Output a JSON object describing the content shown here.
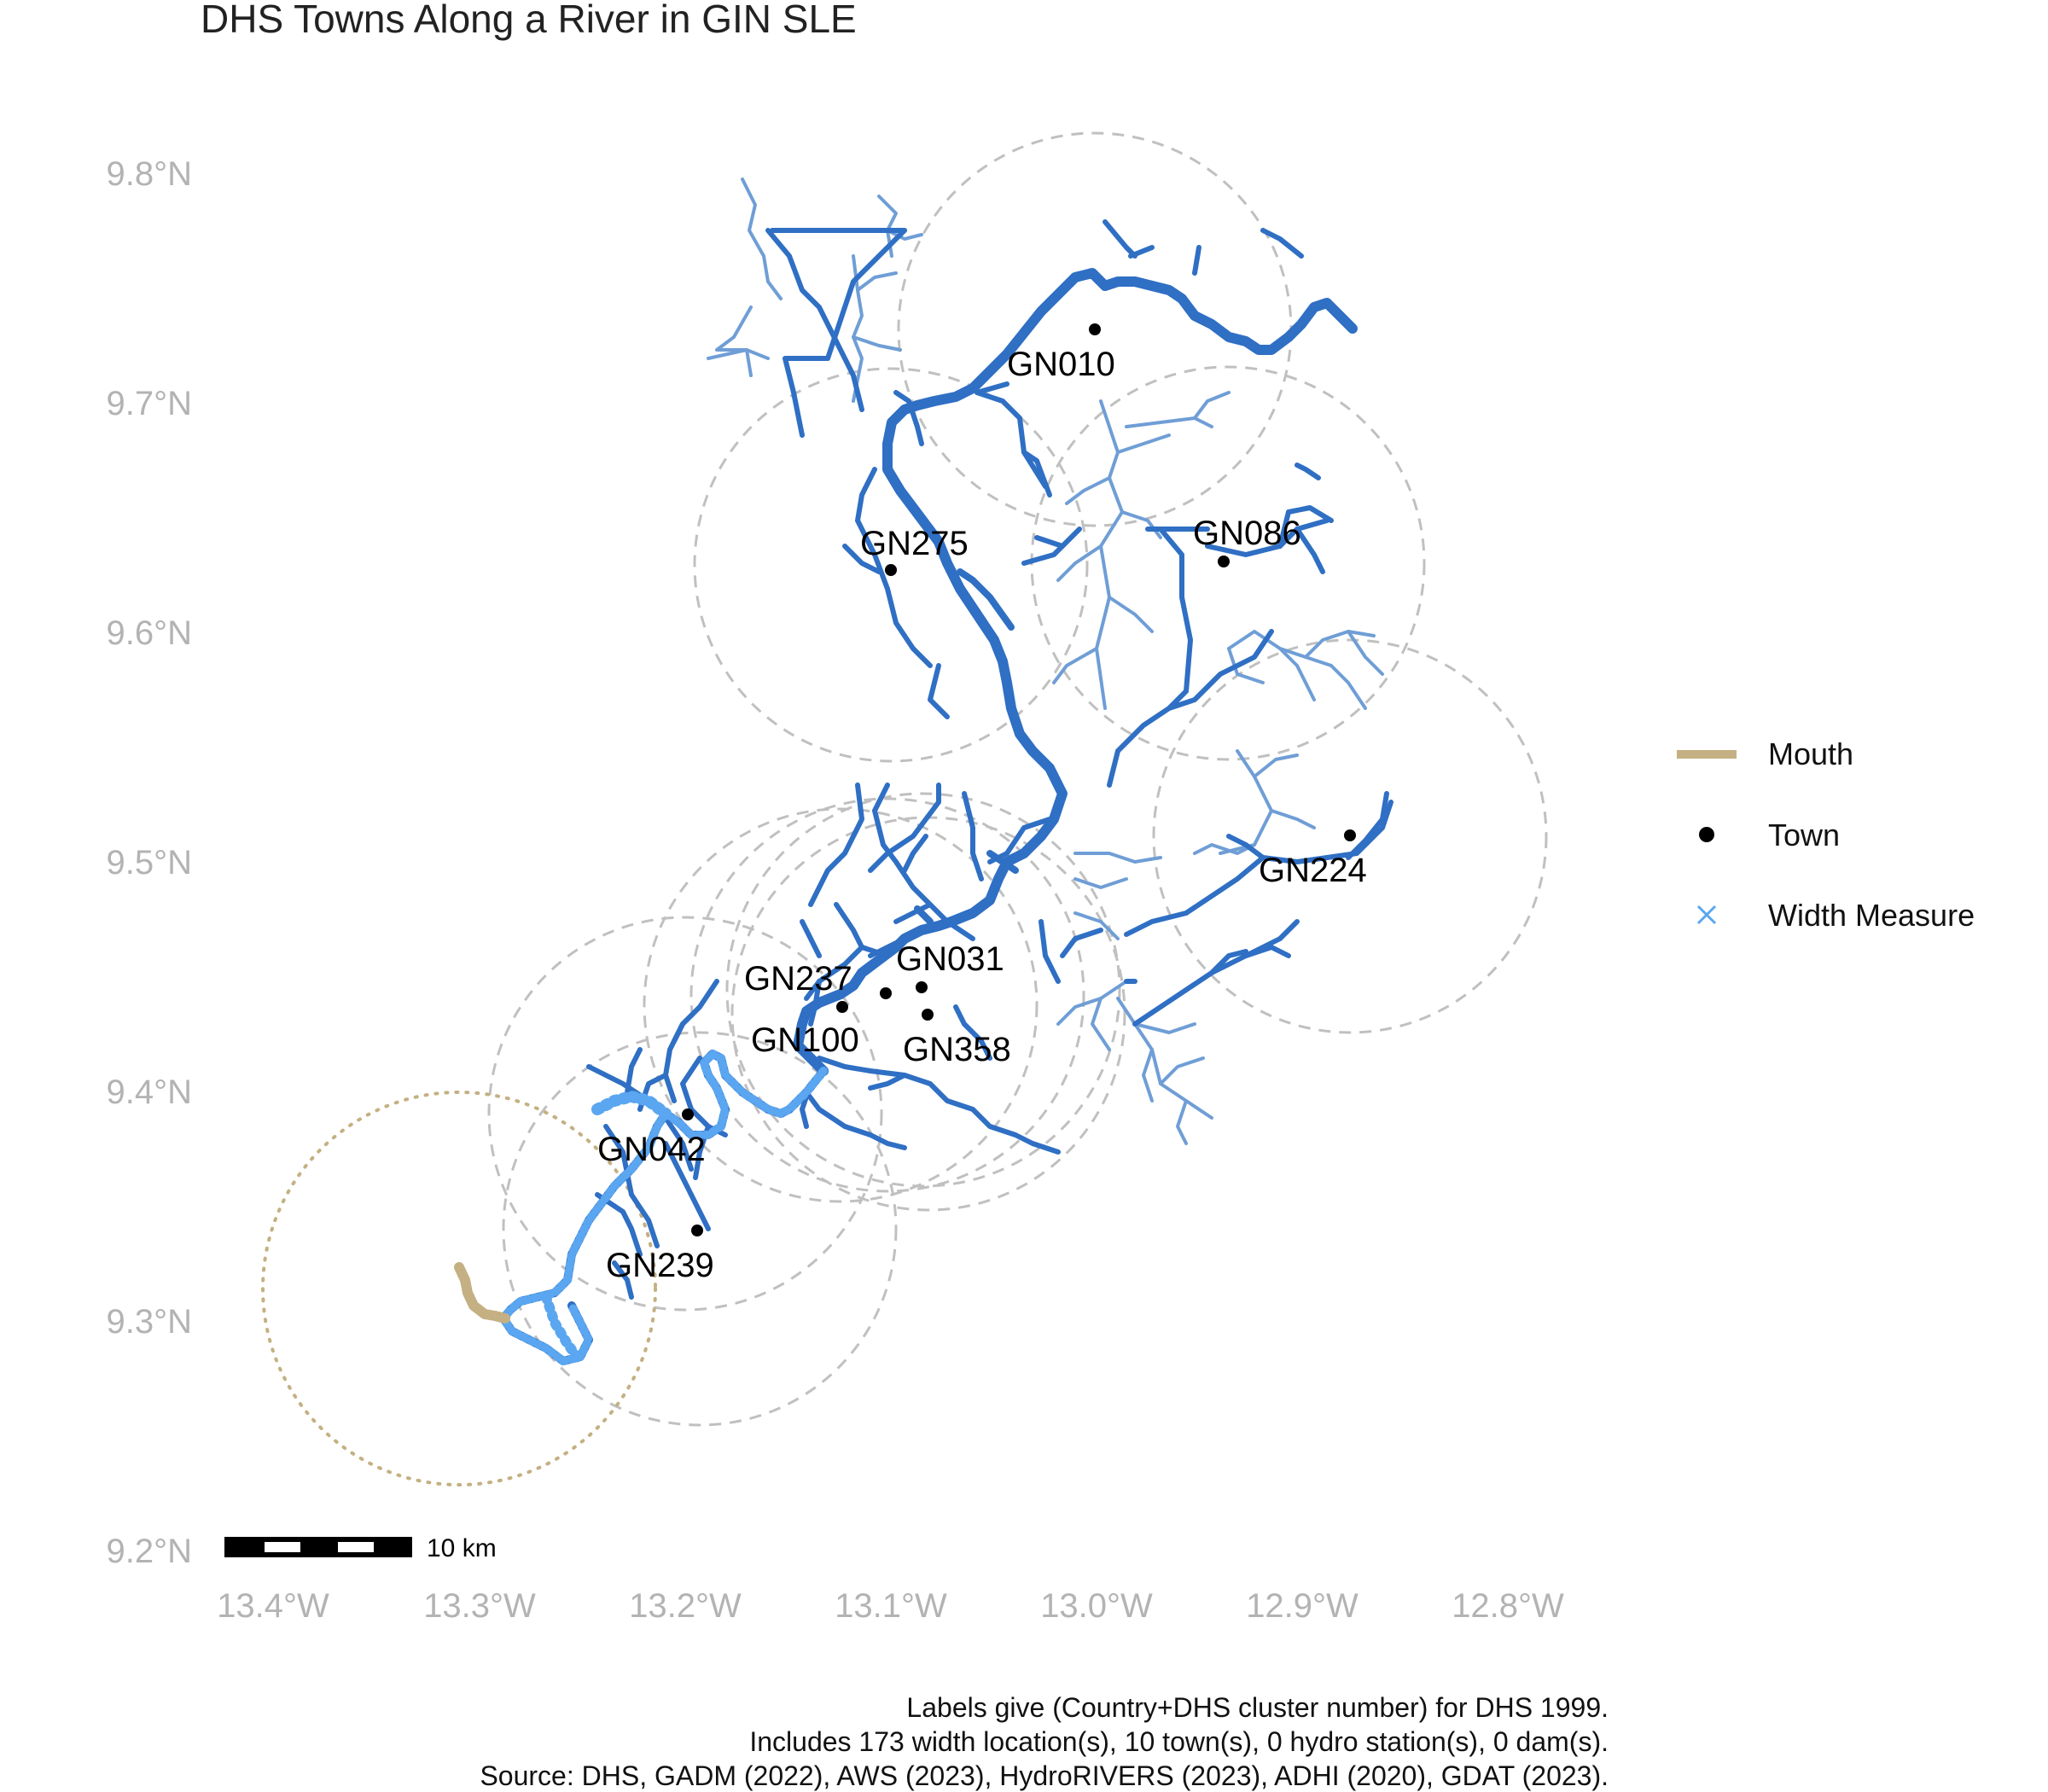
{
  "title": "DHS Towns Along a River in GIN SLE",
  "axes": {
    "y_labels": [
      "9.8°N",
      "9.7°N",
      "9.6°N",
      "9.5°N",
      "9.4°N",
      "9.3°N",
      "9.2°N"
    ],
    "x_labels": [
      "13.4°W",
      "13.3°W",
      "13.2°W",
      "13.1°W",
      "13.0°W",
      "12.9°W",
      "12.8°W"
    ]
  },
  "towns": [
    {
      "label": "GN010",
      "lon": -13.001,
      "lat": 9.73
    },
    {
      "label": "GN275",
      "lon": -13.1,
      "lat": 9.626
    },
    {
      "label": "GN086",
      "lon": -12.938,
      "lat": 9.63
    },
    {
      "label": "GN224",
      "lon": -12.873,
      "lat": 9.511
    },
    {
      "label": "GN031",
      "lon": -13.084,
      "lat": 9.445
    },
    {
      "label": "GN237",
      "lon": -13.12,
      "lat": 9.436
    },
    {
      "label": "GN100",
      "lon": -13.101,
      "lat": 9.441
    },
    {
      "label": "GN358",
      "lon": -13.082,
      "lat": 9.432
    },
    {
      "label": "GN042",
      "lon": -13.195,
      "lat": 9.391
    },
    {
      "label": "GN239",
      "lon": -13.191,
      "lat": 9.339
    }
  ],
  "legend": {
    "mouth": "Mouth",
    "town": "Town",
    "width": "Width Measure"
  },
  "scalebar": {
    "label": "10 km"
  },
  "caption": [
    "Labels give (Country+DHS cluster number) for DHS 1999.",
    "Includes 173 width location(s), 10 town(s), 0 hydro station(s), 0 dam(s).",
    "Source: DHS, GADM (2022), AWS (2023), HydroRIVERS (2023), ADHI (2020), GDAT (2023)."
  ],
  "colors": {
    "river_main": "#2f6fc4",
    "river_trib": "#6f9ed6",
    "width_measure": "#5aa6f0",
    "mouth": "#c4b082",
    "buffer": "#c0c0c0",
    "town": "#000000"
  }
}
